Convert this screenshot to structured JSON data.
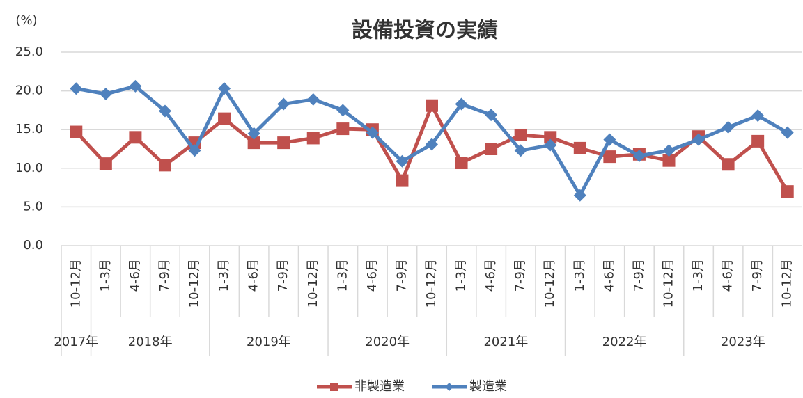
{
  "chart_data": {
    "type": "line",
    "title": "設備投資の実績",
    "y_label": "(%)",
    "categories": [
      "10-12月",
      "1-3月",
      "4-6月",
      "7-9月",
      "10-12月",
      "1-3月",
      "4-6月",
      "7-9月",
      "10-12月",
      "1-3月",
      "4-6月",
      "7-9月",
      "10-12月",
      "1-3月",
      "4-6月",
      "7-9月",
      "10-12月",
      "1-3月",
      "4-6月",
      "7-9月",
      "10-12月",
      "1-3月",
      "4-6月",
      "7-9月",
      "10-12月"
    ],
    "groups": [
      "2017年",
      "2018年",
      "2019年",
      "2020年",
      "2021年",
      "2022年",
      "2023年"
    ],
    "series": [
      {
        "name": "非製造業",
        "color": "#c0504d",
        "marker": "square",
        "values": [
          14.7,
          10.6,
          14.0,
          10.4,
          13.3,
          16.4,
          13.3,
          13.3,
          13.9,
          15.1,
          15.0,
          8.4,
          18.1,
          10.7,
          12.5,
          14.3,
          14.0,
          12.6,
          11.5,
          11.8,
          11.0,
          14.1,
          10.5,
          13.5,
          7.0
        ]
      },
      {
        "name": "製造業",
        "color": "#4f81bd",
        "marker": "diamond",
        "values": [
          20.3,
          19.6,
          20.6,
          17.4,
          12.3,
          20.3,
          14.5,
          18.3,
          18.9,
          17.5,
          14.6,
          10.9,
          13.1,
          18.3,
          16.9,
          12.3,
          13.0,
          6.5,
          13.7,
          11.6,
          12.3,
          13.7,
          15.3,
          16.8,
          14.6
        ]
      }
    ],
    "ylim": [
      0,
      25
    ],
    "yticks": [
      {
        "value": 0,
        "label": "0.0"
      },
      {
        "value": 5,
        "label": "5.0"
      },
      {
        "value": 10,
        "label": "10.0"
      },
      {
        "value": 15,
        "label": "15.0"
      },
      {
        "value": 20,
        "label": "20.0"
      },
      {
        "value": 25,
        "label": "25.0"
      }
    ],
    "grid": true,
    "legend": "bottom"
  }
}
